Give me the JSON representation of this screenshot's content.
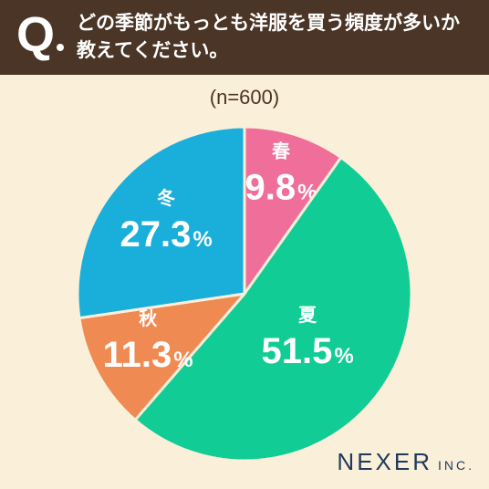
{
  "header": {
    "q_mark": "Q",
    "question_line1": "どの季節がもっとも洋服を買う頻度が多いか",
    "question_line2": "教えてください。"
  },
  "sample_label": "(n=600)",
  "brand": {
    "name": "NEXER",
    "suffix": "INC."
  },
  "colors": {
    "header_bg": "#4a3526",
    "background": "#faefd9",
    "spring": "#ef6f9a",
    "summer": "#11cc95",
    "autumn": "#ef8a52",
    "winter": "#1aaedb"
  },
  "chart_data": {
    "type": "pie",
    "title": "",
    "slices": [
      {
        "label": "春",
        "value": 9.8,
        "display": "9.8",
        "unit": "%",
        "color": "#ef6f9a"
      },
      {
        "label": "夏",
        "value": 51.5,
        "display": "51.5",
        "unit": "%",
        "color": "#11cc95"
      },
      {
        "label": "秋",
        "value": 11.3,
        "display": "11.3",
        "unit": "%",
        "color": "#ef8a52"
      },
      {
        "label": "冬",
        "value": 27.3,
        "display": "27.3",
        "unit": "%",
        "color": "#1aaedb"
      }
    ],
    "start": "12 o'clock",
    "direction": "clockwise"
  }
}
